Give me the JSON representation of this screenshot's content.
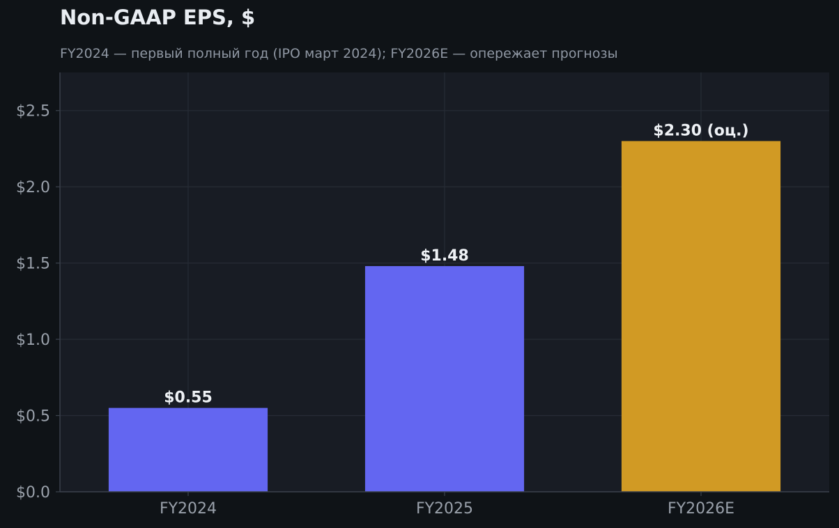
{
  "chart_data": {
    "type": "bar",
    "title": "Non-GAAP EPS, $",
    "subtitle": "FY2024 — первый полный год (IPO март 2024); FY2026E — опережает прогнозы",
    "categories": [
      "FY2024",
      "FY2025",
      "FY2026E"
    ],
    "values": [
      0.55,
      1.48,
      2.3
    ],
    "data_labels": [
      "$0.55",
      "$1.48",
      "$2.30 (оц.)"
    ],
    "bar_colors": [
      "#6366f1",
      "#6366f1",
      "#d19a24"
    ],
    "ylim": [
      0,
      2.75
    ],
    "yticks": [
      0,
      0.5,
      1.0,
      1.5,
      2.0,
      2.5
    ],
    "ytick_labels": [
      "$0.0",
      "$0.5",
      "$1.0",
      "$1.5",
      "$2.0",
      "$2.5"
    ],
    "xlabel": "",
    "ylabel": "",
    "grid": true,
    "colors": {
      "background": "#0f1317",
      "plot_background": "#181c24",
      "grid": "#262b35",
      "axis": "#3a404b"
    }
  }
}
